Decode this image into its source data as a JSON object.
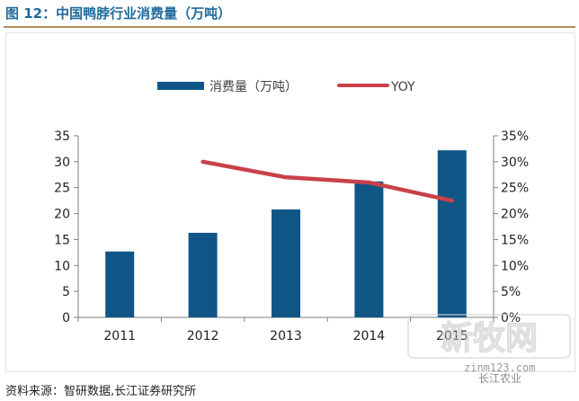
{
  "figure": {
    "title": "图 12：中国鸭脖行业消费量（万吨）",
    "source": "资料来源：智研数据,长江证券研究所"
  },
  "watermark": {
    "logo_text": "新牧网",
    "domain": "zinm123.com",
    "account": "长江农业"
  },
  "colors": {
    "bar": "#0f5687",
    "line": "#c9414a",
    "title": "#1f6a9c",
    "rule": "#b58a58",
    "axis": "#7f7f7f"
  },
  "chart_data": {
    "type": "bar",
    "categories": [
      "2011",
      "2012",
      "2013",
      "2014",
      "2015"
    ],
    "series": [
      {
        "name": "消费量（万吨）",
        "type": "bar",
        "axis": "left",
        "values": [
          12.7,
          16.3,
          20.8,
          26.2,
          32.2
        ]
      },
      {
        "name": "YOY",
        "type": "line",
        "axis": "right",
        "values": [
          null,
          0.3,
          0.27,
          0.26,
          0.225
        ]
      }
    ],
    "ylim_left": [
      0,
      35
    ],
    "yticks_left": [
      "0",
      "5",
      "10",
      "15",
      "20",
      "25",
      "30",
      "35"
    ],
    "ylim_right": [
      0,
      0.35
    ],
    "yticks_right": [
      "0%",
      "5%",
      "10%",
      "15%",
      "20%",
      "25%",
      "30%",
      "35%"
    ],
    "legend_position": "top",
    "grid": false
  }
}
